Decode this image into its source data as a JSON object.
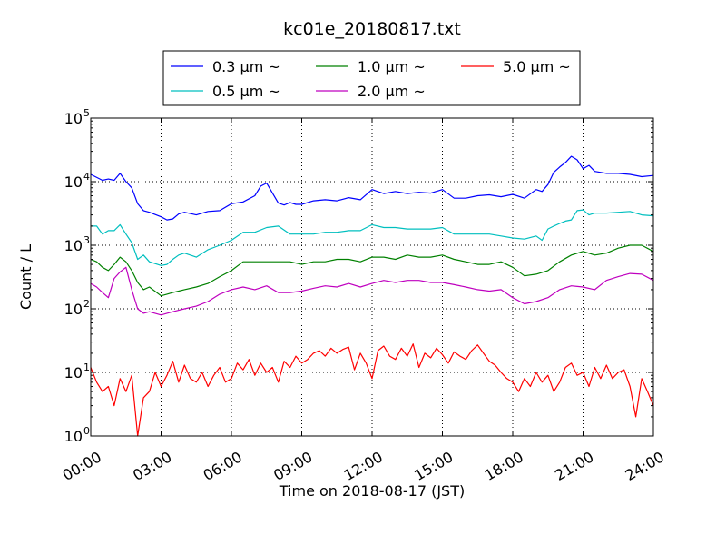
{
  "chart_data": {
    "type": "line",
    "title": "kc01e_20180817.txt",
    "xlabel": "Time on 2018-08-17 (JST)",
    "ylabel": "Count / L",
    "x_unit": "hours",
    "xlim": [
      0,
      24
    ],
    "ylim": [
      1,
      100000
    ],
    "y_scale": "log",
    "grid": true,
    "legend_position": "top-center",
    "x_ticks": [
      {
        "value": 0,
        "label": "00:00"
      },
      {
        "value": 3,
        "label": "03:00"
      },
      {
        "value": 6,
        "label": "06:00"
      },
      {
        "value": 9,
        "label": "09:00"
      },
      {
        "value": 12,
        "label": "12:00"
      },
      {
        "value": 15,
        "label": "15:00"
      },
      {
        "value": 18,
        "label": "18:00"
      },
      {
        "value": 21,
        "label": "21:00"
      },
      {
        "value": 24,
        "label": "24:00"
      }
    ],
    "y_ticks": [
      {
        "value": 1,
        "base": "10",
        "exp": "0"
      },
      {
        "value": 10,
        "base": "10",
        "exp": "1"
      },
      {
        "value": 100,
        "base": "10",
        "exp": "2"
      },
      {
        "value": 1000,
        "base": "10",
        "exp": "3"
      },
      {
        "value": 10000,
        "base": "10",
        "exp": "4"
      },
      {
        "value": 100000,
        "base": "10",
        "exp": "5"
      }
    ],
    "series": [
      {
        "name": "0.3 μm ~",
        "color": "#0000ff",
        "x": [
          0,
          0.5,
          0.75,
          1,
          1.25,
          1.5,
          1.75,
          2,
          2.25,
          2.5,
          3,
          3.25,
          3.5,
          3.75,
          4,
          4.5,
          5,
          5.5,
          6,
          6.5,
          7,
          7.25,
          7.5,
          8,
          8.25,
          8.5,
          8.75,
          9,
          9.5,
          10,
          10.5,
          11,
          11.5,
          12,
          12.5,
          13,
          13.5,
          14,
          14.5,
          15,
          15.5,
          16,
          16.5,
          17,
          17.5,
          18,
          18.5,
          19,
          19.25,
          19.5,
          19.75,
          20,
          20.25,
          20.5,
          20.75,
          21,
          21.25,
          21.5,
          22,
          22.5,
          23,
          23.5,
          24
        ],
        "y": [
          13000,
          10500,
          11000,
          10500,
          13500,
          10000,
          8000,
          4500,
          3500,
          3300,
          2800,
          2500,
          2600,
          3100,
          3300,
          3000,
          3400,
          3500,
          4500,
          4800,
          6000,
          8500,
          9500,
          4600,
          4300,
          4700,
          4400,
          4400,
          5000,
          5200,
          5000,
          5600,
          5200,
          7500,
          6500,
          7000,
          6500,
          6800,
          6600,
          7500,
          5500,
          5500,
          6000,
          6200,
          5800,
          6300,
          5500,
          7500,
          7000,
          9000,
          14000,
          17000,
          20000,
          25000,
          22000,
          16000,
          18000,
          14500,
          13500,
          13500,
          13000,
          12000,
          12500
        ]
      },
      {
        "name": "0.5 μm ~",
        "color": "#00bfbf",
        "x": [
          0,
          0.25,
          0.5,
          0.75,
          1,
          1.25,
          1.5,
          1.75,
          2,
          2.25,
          2.5,
          3,
          3.25,
          3.5,
          3.75,
          4,
          4.5,
          5,
          5.5,
          6,
          6.5,
          7,
          7.5,
          8,
          8.5,
          9,
          9.5,
          10,
          10.5,
          11,
          11.5,
          12,
          12.5,
          13,
          13.5,
          14,
          14.5,
          15,
          15.5,
          16,
          16.5,
          17,
          17.5,
          18,
          18.5,
          19,
          19.25,
          19.5,
          19.75,
          20,
          20.25,
          20.5,
          20.75,
          21,
          21.25,
          21.5,
          22,
          22.5,
          23,
          23.5,
          24
        ],
        "y": [
          2000,
          2000,
          1500,
          1700,
          1700,
          2100,
          1500,
          1100,
          600,
          700,
          550,
          480,
          500,
          600,
          700,
          750,
          650,
          850,
          1000,
          1200,
          1600,
          1600,
          1900,
          2000,
          1500,
          1500,
          1500,
          1600,
          1600,
          1700,
          1700,
          2100,
          1900,
          1900,
          1800,
          1800,
          1800,
          1900,
          1500,
          1500,
          1500,
          1500,
          1400,
          1300,
          1250,
          1400,
          1200,
          1800,
          2000,
          2200,
          2400,
          2500,
          3500,
          3600,
          3000,
          3200,
          3200,
          3300,
          3400,
          3000,
          2900
        ]
      },
      {
        "name": "1.0 μm ~",
        "color": "#008000",
        "x": [
          0,
          0.25,
          0.5,
          0.75,
          1,
          1.25,
          1.5,
          1.75,
          2,
          2.25,
          2.5,
          3,
          3.25,
          3.5,
          3.75,
          4,
          4.5,
          5,
          5.5,
          6,
          6.5,
          7,
          7.5,
          8,
          8.5,
          9,
          9.5,
          10,
          10.5,
          11,
          11.5,
          12,
          12.5,
          13,
          13.5,
          14,
          14.5,
          15,
          15.5,
          16,
          16.5,
          17,
          17.5,
          18,
          18.5,
          19,
          19.5,
          20,
          20.5,
          21,
          21.5,
          22,
          22.5,
          23,
          23.5,
          24
        ],
        "y": [
          600,
          550,
          450,
          400,
          500,
          650,
          550,
          400,
          260,
          200,
          220,
          160,
          170,
          180,
          190,
          200,
          220,
          250,
          320,
          400,
          550,
          550,
          550,
          550,
          550,
          500,
          550,
          550,
          600,
          600,
          550,
          650,
          650,
          600,
          700,
          650,
          650,
          700,
          600,
          550,
          500,
          500,
          550,
          450,
          330,
          350,
          400,
          550,
          700,
          800,
          700,
          750,
          900,
          1000,
          1000,
          800
        ]
      },
      {
        "name": "2.0 μm ~",
        "color": "#bf00bf",
        "x": [
          0,
          0.25,
          0.5,
          0.75,
          1,
          1.25,
          1.5,
          1.75,
          2,
          2.25,
          2.5,
          3,
          3.25,
          3.5,
          3.75,
          4,
          4.5,
          5,
          5.5,
          6,
          6.5,
          7,
          7.5,
          8,
          8.5,
          9,
          9.5,
          10,
          10.5,
          11,
          11.5,
          12,
          12.5,
          13,
          13.5,
          14,
          14.5,
          15,
          15.5,
          16,
          16.5,
          17,
          17.5,
          18,
          18.5,
          19,
          19.5,
          20,
          20.5,
          21,
          21.5,
          22,
          22.5,
          23,
          23.5,
          24
        ],
        "y": [
          250,
          220,
          180,
          150,
          300,
          380,
          450,
          200,
          100,
          85,
          90,
          80,
          85,
          90,
          95,
          100,
          110,
          130,
          170,
          200,
          220,
          200,
          230,
          180,
          180,
          190,
          210,
          230,
          220,
          250,
          220,
          250,
          280,
          260,
          280,
          280,
          260,
          260,
          240,
          220,
          200,
          190,
          200,
          150,
          120,
          130,
          150,
          200,
          230,
          220,
          200,
          280,
          320,
          360,
          350,
          280
        ]
      },
      {
        "name": "5.0 μm ~",
        "color": "#ff0000",
        "x": [
          0,
          0.25,
          0.5,
          0.75,
          1,
          1.25,
          1.5,
          1.75,
          2,
          2.25,
          2.5,
          2.75,
          3,
          3.25,
          3.5,
          3.75,
          4,
          4.25,
          4.5,
          4.75,
          5,
          5.25,
          5.5,
          5.75,
          6,
          6.25,
          6.5,
          6.75,
          7,
          7.25,
          7.5,
          7.75,
          8,
          8.25,
          8.5,
          8.75,
          9,
          9.25,
          9.5,
          9.75,
          10,
          10.25,
          10.5,
          10.75,
          11,
          11.25,
          11.5,
          11.75,
          12,
          12.25,
          12.5,
          12.75,
          13,
          13.25,
          13.5,
          13.75,
          14,
          14.25,
          14.5,
          14.75,
          15,
          15.25,
          15.5,
          15.75,
          16,
          16.25,
          16.5,
          16.75,
          17,
          17.25,
          17.5,
          17.75,
          18,
          18.25,
          18.5,
          18.75,
          19,
          19.25,
          19.5,
          19.75,
          20,
          20.25,
          20.5,
          20.75,
          21,
          21.25,
          21.5,
          21.75,
          22,
          22.25,
          22.5,
          22.75,
          23,
          23.25,
          23.5,
          23.75,
          24
        ],
        "y": [
          12,
          7,
          5,
          6,
          3,
          8,
          5,
          9,
          1,
          4,
          5,
          10,
          6,
          9,
          15,
          7,
          13,
          8,
          7,
          10,
          6,
          9,
          12,
          7,
          8,
          14,
          11,
          16,
          9,
          14,
          10,
          12,
          7,
          15,
          12,
          18,
          14,
          16,
          20,
          22,
          18,
          24,
          20,
          23,
          25,
          11,
          20,
          14,
          8,
          22,
          26,
          18,
          16,
          24,
          18,
          28,
          12,
          20,
          17,
          24,
          19,
          14,
          21,
          18,
          16,
          22,
          27,
          20,
          15,
          13,
          10,
          8,
          7,
          5,
          8,
          6,
          10,
          7,
          9,
          5,
          7,
          12,
          14,
          9,
          10,
          6,
          12,
          8,
          13,
          8,
          10,
          11,
          6,
          2,
          8,
          5,
          3
        ]
      }
    ]
  }
}
